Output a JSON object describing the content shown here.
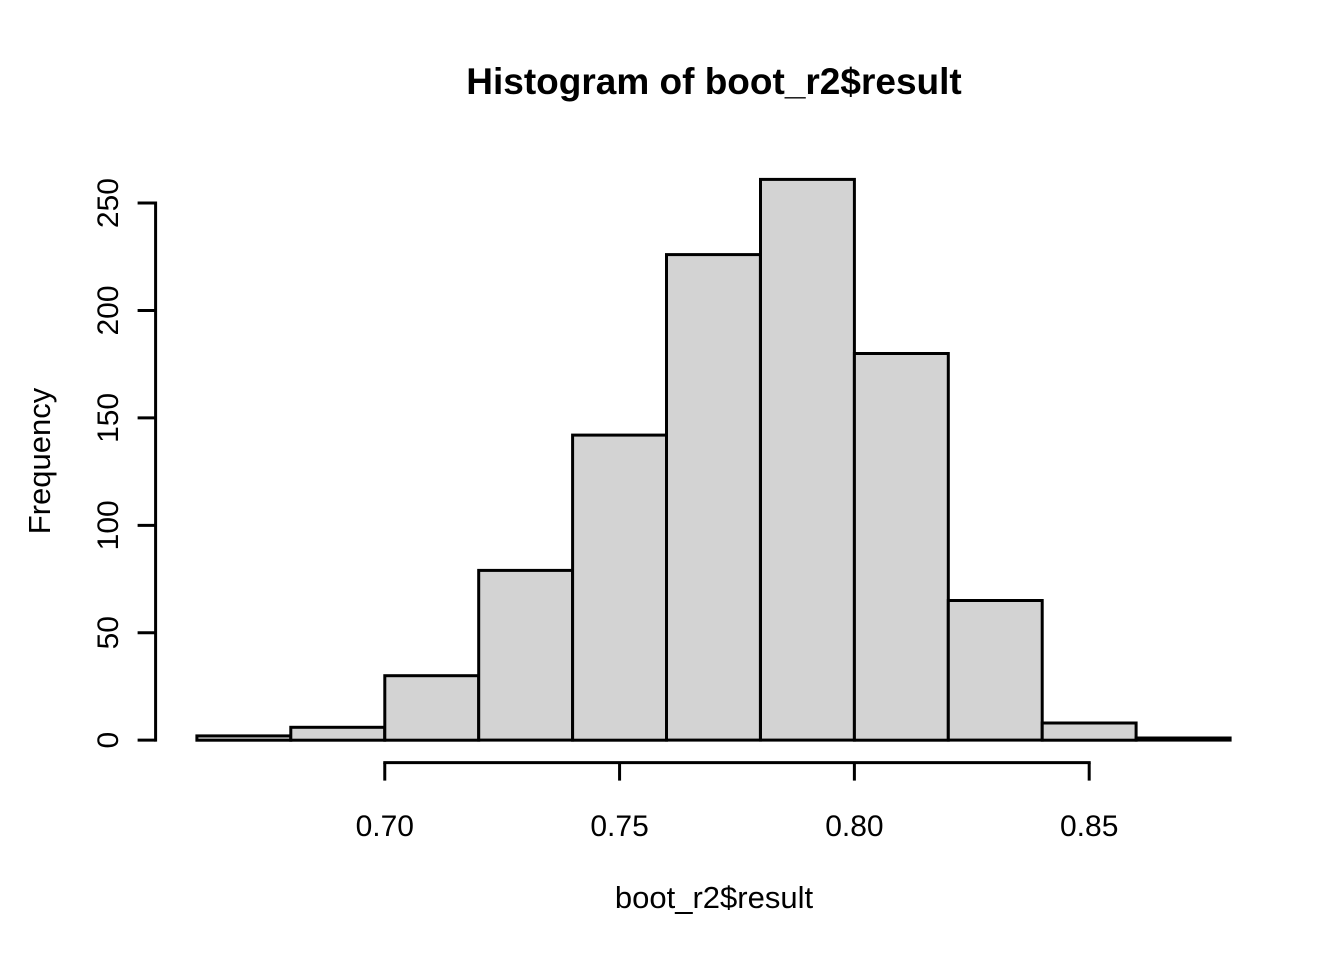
{
  "chart_data": {
    "type": "bar",
    "subtype": "histogram",
    "title": "Histogram of boot_r2$result",
    "xlabel": "boot_r2$result",
    "ylabel": "Frequency",
    "breaks": [
      0.66,
      0.68,
      0.7,
      0.72,
      0.74,
      0.76,
      0.78,
      0.8,
      0.82,
      0.84,
      0.86,
      0.88
    ],
    "bin_width": 0.02,
    "counts": [
      2,
      6,
      30,
      79,
      142,
      226,
      261,
      180,
      65,
      8,
      1
    ],
    "total_n": 1000,
    "x_ticks": [
      0.7,
      0.75,
      0.8,
      0.85
    ],
    "x_tick_labels": [
      "0.70",
      "0.75",
      "0.80",
      "0.85"
    ],
    "y_ticks": [
      0,
      50,
      100,
      150,
      200,
      250
    ],
    "y_tick_labels": [
      "0",
      "50",
      "100",
      "150",
      "200",
      "250"
    ],
    "xlim": [
      0.66,
      0.88
    ],
    "ylim": [
      0,
      261
    ],
    "grid": false,
    "legend": null,
    "colors": {
      "bar_fill": "#d3d3d3",
      "bar_stroke": "#000000",
      "axis": "#000000",
      "background": "#ffffff"
    }
  }
}
